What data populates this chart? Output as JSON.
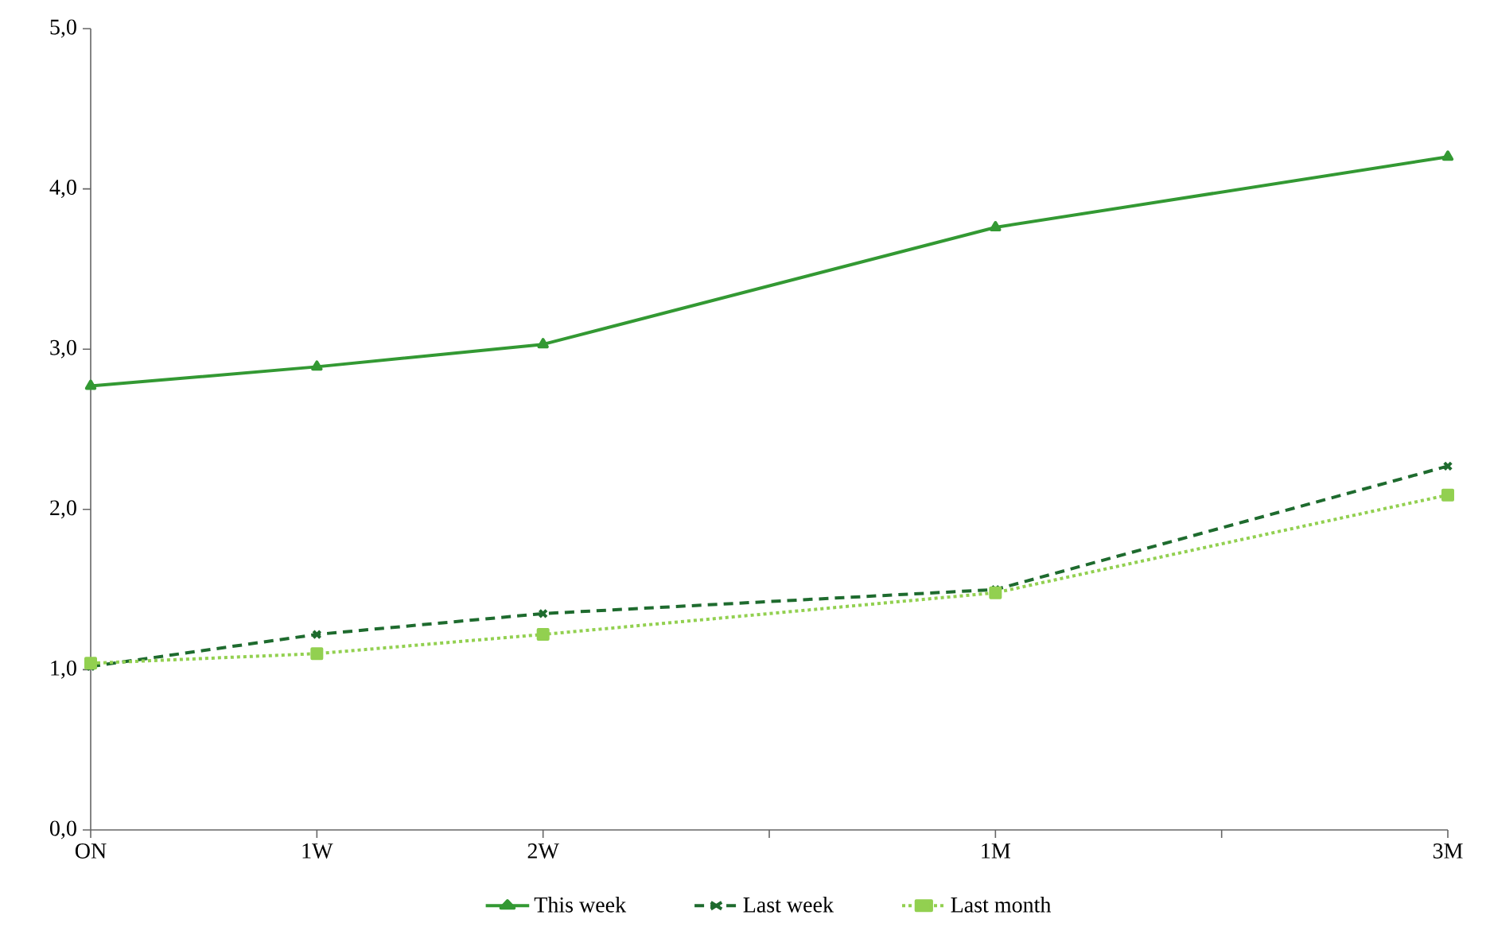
{
  "chart_data": {
    "type": "line",
    "categories": [
      "ON",
      "1W",
      "2W",
      null,
      "1M",
      null,
      "3M"
    ],
    "series": [
      {
        "name": "This week",
        "color": "#339933",
        "marker": "triangle",
        "line_style": "solid",
        "values": [
          2.77,
          2.89,
          3.03,
          null,
          3.76,
          null,
          4.2
        ]
      },
      {
        "name": "Last week",
        "color": "#1e6b2e",
        "marker": "cross",
        "line_style": "dashed",
        "values": [
          1.02,
          1.22,
          1.35,
          null,
          1.5,
          null,
          2.27
        ]
      },
      {
        "name": "Last month",
        "color": "#92d050",
        "marker": "square",
        "line_style": "dotted",
        "values": [
          1.04,
          1.1,
          1.22,
          null,
          1.48,
          null,
          2.09
        ]
      }
    ],
    "ylim": [
      0,
      5
    ],
    "yticks": [
      {
        "value": 0,
        "label": "0,0"
      },
      {
        "value": 1,
        "label": "1,0"
      },
      {
        "value": 2,
        "label": "2,0"
      },
      {
        "value": 3,
        "label": "3,0"
      },
      {
        "value": 4,
        "label": "4,0"
      },
      {
        "value": 5,
        "label": "5,0"
      }
    ],
    "grid": false,
    "legend": "bottom"
  }
}
